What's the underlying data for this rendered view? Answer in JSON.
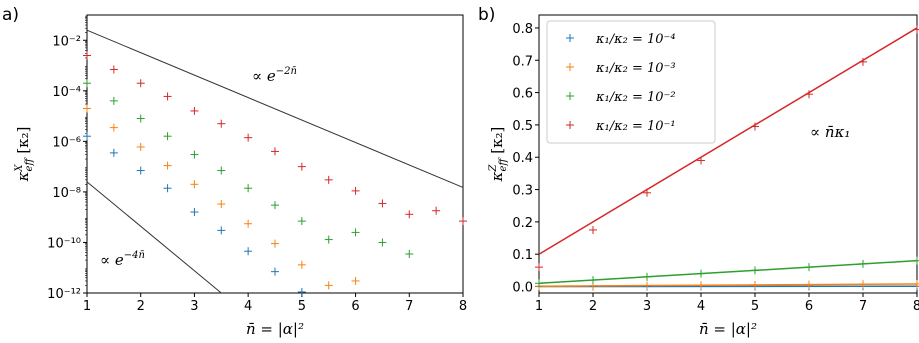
{
  "chart_data": [
    {
      "panel": "a)",
      "type": "scatter",
      "y_scale": "log",
      "xlim": [
        1,
        8
      ],
      "ylim": [
        1e-12,
        0.1
      ],
      "x_ticks": [
        1,
        2,
        3,
        4,
        5,
        6,
        7,
        8
      ],
      "y_ticks": [
        {
          "value": 1e-12,
          "label": "10⁻¹²"
        },
        {
          "value": 1e-10,
          "label": "10⁻¹⁰"
        },
        {
          "value": 1e-08,
          "label": "10⁻⁸"
        },
        {
          "value": 1e-06,
          "label": "10⁻⁶"
        },
        {
          "value": 0.0001,
          "label": "10⁻⁴"
        },
        {
          "value": 0.01,
          "label": "10⁻²"
        }
      ],
      "xlabel": "n̄ = |α|²",
      "ylabel": "κ_eff^X [κ₂]",
      "series": [
        {
          "color": "#1f77b4",
          "x": [
            1,
            1.5,
            2,
            2.5,
            3,
            3.5,
            4,
            4.5,
            5
          ],
          "y": [
            1.6e-06,
            3.5e-07,
            7e-08,
            1.4e-08,
            1.6e-09,
            3e-10,
            4.5e-11,
            7e-12,
            1.1e-12
          ]
        },
        {
          "color": "#ff7f0e",
          "x": [
            1,
            1.5,
            2,
            2.5,
            3,
            3.5,
            4,
            4.5,
            5,
            5.5,
            6
          ],
          "y": [
            2e-05,
            3.5e-06,
            6e-07,
            1.1e-07,
            2e-08,
            3.3e-09,
            5.5e-10,
            9e-11,
            1.3e-11,
            2e-12,
            3e-12
          ]
        },
        {
          "color": "#2ca02c",
          "x": [
            1,
            1.5,
            2,
            2.5,
            3,
            3.5,
            4,
            4.5,
            5,
            5.5,
            6,
            6.5,
            7
          ],
          "y": [
            0.0002,
            4e-05,
            8e-06,
            1.6e-06,
            3e-07,
            7e-08,
            1.4e-08,
            3e-09,
            7e-10,
            1.3e-10,
            2.5e-10,
            1e-10,
            3.5e-11
          ]
        },
        {
          "color": "#d62728",
          "x": [
            1,
            1.5,
            2,
            2.5,
            3,
            3.5,
            4,
            4.5,
            5,
            5.5,
            6,
            6.5,
            7,
            7.5,
            8
          ],
          "y": [
            0.0025,
            0.0007,
            0.0002,
            6e-05,
            1.6e-05,
            5e-06,
            1.4e-06,
            4e-07,
            1e-07,
            3e-08,
            1.1e-08,
            3.5e-09,
            1.3e-09,
            1.8e-09,
            7e-10
          ]
        }
      ],
      "guides": [
        {
          "label": "∝ e^{-2n̄}",
          "x": [
            1,
            8
          ],
          "y": [
            0.025,
            1.5e-08
          ]
        },
        {
          "label": "∝ e^{-4n̄}",
          "x": [
            1,
            3.5
          ],
          "y": [
            2.5e-08,
            1e-12
          ]
        }
      ],
      "annotations": {
        "upper": "∝ e",
        "upper_exp": "−2n̄",
        "lower": "∝ e",
        "lower_exp": "−4n̄"
      }
    },
    {
      "panel": "b)",
      "type": "line",
      "xlim": [
        1,
        8
      ],
      "ylim": [
        -0.02,
        0.84
      ],
      "x_ticks": [
        1,
        2,
        3,
        4,
        5,
        6,
        7,
        8
      ],
      "y_ticks": [
        0.0,
        0.1,
        0.2,
        0.3,
        0.4,
        0.5,
        0.6,
        0.7,
        0.8
      ],
      "y_tick_labels": [
        "0.0",
        "0.1",
        "0.2",
        "0.3",
        "0.4",
        "0.5",
        "0.6",
        "0.7",
        "0.8"
      ],
      "xlabel": "n̄ = |α|²",
      "ylabel": "κ_eff^Z [κ₂]",
      "series": [
        {
          "name": "κ₁/κ₂ = 10⁻⁴",
          "color": "#1f77b4",
          "x": [
            1,
            2,
            3,
            4,
            5,
            6,
            7,
            8
          ],
          "y": [
            0.0001,
            0.0002,
            0.0003,
            0.0004,
            0.0005,
            0.0006,
            0.0007,
            0.0008
          ],
          "fit": [
            0.0001,
            0.0008
          ]
        },
        {
          "name": "κ₁/κ₂ = 10⁻³",
          "color": "#ff7f0e",
          "x": [
            1,
            2,
            3,
            4,
            5,
            6,
            7,
            8
          ],
          "y": [
            0.001,
            0.002,
            0.003,
            0.004,
            0.005,
            0.006,
            0.007,
            0.008
          ],
          "fit": [
            0.001,
            0.008
          ]
        },
        {
          "name": "κ₁/κ₂ = 10⁻²",
          "color": "#2ca02c",
          "x": [
            1,
            2,
            3,
            4,
            5,
            6,
            7,
            8
          ],
          "y": [
            0.01,
            0.02,
            0.03,
            0.04,
            0.05,
            0.06,
            0.07,
            0.08
          ],
          "fit": [
            0.01,
            0.08
          ]
        },
        {
          "name": "κ₁/κ₂ = 10⁻¹",
          "color": "#d62728",
          "x": [
            1,
            2,
            3,
            4,
            5,
            6,
            7,
            8
          ],
          "y": [
            0.06,
            0.175,
            0.29,
            0.39,
            0.495,
            0.595,
            0.695,
            0.795
          ],
          "fit": [
            0.1,
            0.8
          ]
        }
      ],
      "legend": "top-left",
      "annotation": "∝ n̄κ₁"
    }
  ]
}
